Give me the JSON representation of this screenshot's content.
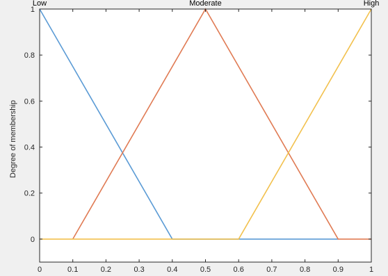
{
  "chart_data": {
    "type": "line",
    "title": "",
    "xlabel": "",
    "ylabel": "Degree of membership",
    "xlim": [
      0,
      1
    ],
    "ylim": [
      -0.1,
      1.0
    ],
    "x_ticks": [
      "0",
      "0.1",
      "0.2",
      "0.3",
      "0.4",
      "0.5",
      "0.6",
      "0.7",
      "0.8",
      "0.9",
      "1"
    ],
    "y_ticks": [
      "0",
      "0.2",
      "0.4",
      "0.6",
      "0.8",
      "1"
    ],
    "grid": false,
    "series": [
      {
        "name": "Low",
        "color": "#5b9bd5",
        "x": [
          0,
          0.4,
          0.6,
          0.9
        ],
        "y": [
          1,
          0,
          0,
          0
        ]
      },
      {
        "name": "Moderate",
        "color": "#e07b54",
        "x": [
          0.1,
          0.5,
          0.9,
          1.0
        ],
        "y": [
          0,
          1,
          0,
          0
        ]
      },
      {
        "name": "High",
        "color": "#f2c14e",
        "x": [
          0,
          0.6,
          1.0
        ],
        "y": [
          0,
          0,
          1
        ]
      }
    ]
  }
}
